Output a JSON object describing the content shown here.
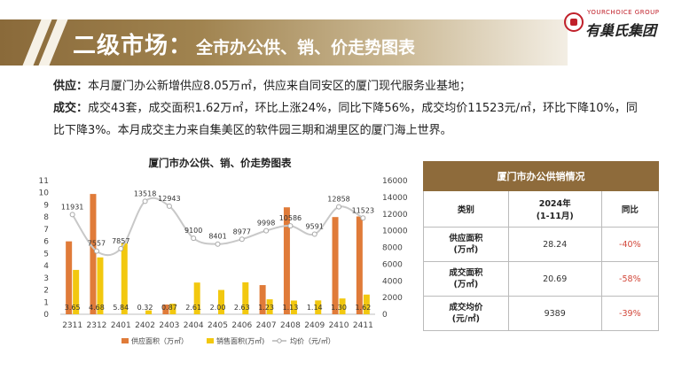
{
  "header": {
    "title_main": "二级市场：",
    "title_sub": "全市办公供、销、价走势图表"
  },
  "logo": {
    "en": "YOURCHOICE GROUP",
    "cn": "有巢氏集团",
    "mark": "logo-mark"
  },
  "summary": {
    "supply_label": "供应：",
    "supply_text": "本月厦门办公新增供应8.05万㎡，供应来自同安区的厦门现代服务业基地；",
    "deal_label": "成交：",
    "deal_text": "成交43套，成交面积1.62万㎡，环比上涨24%，同比下降56%，成交均价11523元/㎡，环比下降10%，同比下降3%。本月成交主力来自集美区的软件园三期和湖里区的厦门海上世界。"
  },
  "table": {
    "caption": "厦门市办公供销情况",
    "col_category": "类别",
    "col_period": "2024年\n(1-11月)",
    "col_yoy": "同比",
    "rows": [
      {
        "label": "供应面积\n(万㎡)",
        "value": "28.24",
        "yoy": "-40%"
      },
      {
        "label": "成交面积\n(万㎡)",
        "value": "20.69",
        "yoy": "-58%"
      },
      {
        "label": "成交均价\n(元/㎡)",
        "value": "9389",
        "yoy": "-39%"
      }
    ]
  },
  "chart_data": {
    "type": "bar",
    "title": "厦门市办公供、销、价走势图表",
    "categories": [
      "2311",
      "2312",
      "2401",
      "2402",
      "2403",
      "2404",
      "2405",
      "2406",
      "2407",
      "2408",
      "2409",
      "2410",
      "2411"
    ],
    "series": [
      {
        "name": "供应面积（万㎡）",
        "type": "bar",
        "axis": "left",
        "color": "#e07b39",
        "values": [
          6.0,
          9.9,
          0,
          0,
          0.8,
          0,
          0,
          0,
          2.4,
          8.8,
          0,
          8.0,
          8.05
        ]
      },
      {
        "name": "销售面积(万㎡)",
        "type": "bar",
        "axis": "left",
        "color": "#f2c80f",
        "values": [
          3.65,
          4.68,
          5.84,
          0.32,
          0.87,
          2.61,
          2.0,
          2.63,
          1.23,
          1.13,
          1.14,
          1.3,
          1.62
        ],
        "labels": [
          "3.65",
          "4.68",
          "5.84",
          "0.32",
          "0.87",
          "2.61",
          "2.00",
          "2.63",
          "1.23",
          "1.13",
          "1.14",
          "1.30",
          "1.62"
        ]
      },
      {
        "name": "均价（元/㎡）",
        "type": "line",
        "axis": "right",
        "color": "#c8c8c8",
        "values": [
          11931,
          7557,
          7857,
          13518,
          12943,
          9100,
          8401,
          8977,
          9998,
          10586,
          9591,
          12858,
          11523
        ]
      }
    ],
    "y_left": {
      "ticks": [
        0,
        1,
        2,
        3,
        4,
        5,
        6,
        7,
        8,
        9,
        10,
        11
      ],
      "range": [
        0,
        11
      ]
    },
    "y_right": {
      "ticks": [
        0,
        2000,
        4000,
        6000,
        8000,
        10000,
        12000,
        14000,
        16000
      ],
      "range": [
        0,
        16000
      ]
    },
    "legend_position": "bottom",
    "grid": false
  }
}
